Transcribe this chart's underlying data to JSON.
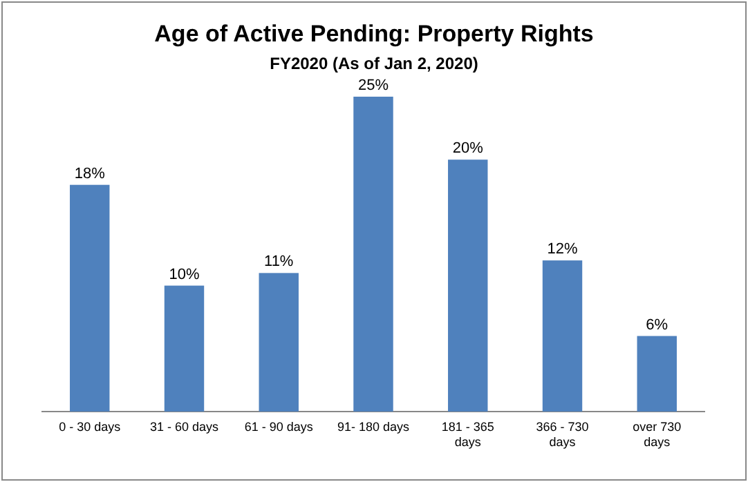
{
  "chart_data": {
    "type": "bar",
    "title": "Age of Active Pending: Property  Rights",
    "subtitle": "FY2020  (As of Jan 2, 2020)",
    "categories": [
      "0 - 30 days",
      "31 - 60 days",
      "61 - 90 days",
      "91- 180 days",
      "181 - 365 days",
      "366 - 730 days",
      "over 730 days"
    ],
    "values": [
      18,
      10,
      11,
      25,
      20,
      12,
      6
    ],
    "value_labels": [
      "18%",
      "10%",
      "11%",
      "25%",
      "20%",
      "12%",
      "6%"
    ],
    "color": "#4f81bd",
    "relative": false,
    "ylim": [
      0,
      25
    ]
  }
}
